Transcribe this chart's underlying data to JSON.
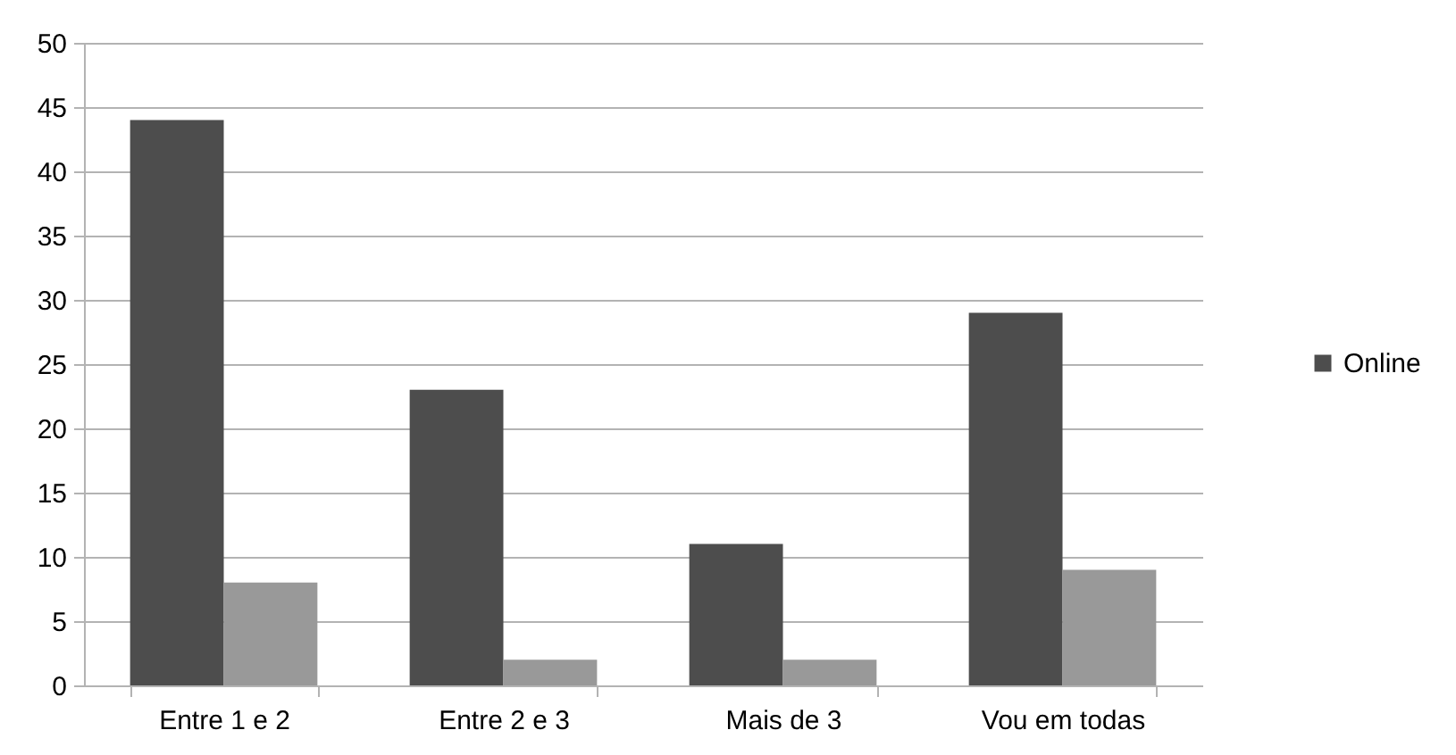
{
  "chart_data": {
    "type": "bar",
    "categories": [
      "Entre 1 e 2",
      "Entre 2 e 3",
      "Mais de 3",
      "Vou em todas"
    ],
    "series": [
      {
        "name": "Online",
        "color": "#4d4d4d",
        "values": [
          44,
          23,
          11,
          29
        ]
      },
      {
        "color": "#999999",
        "values": [
          8,
          2,
          2,
          9
        ]
      }
    ],
    "ylim": [
      0,
      50
    ],
    "yticks": [
      0,
      5,
      10,
      15,
      20,
      25,
      30,
      35,
      40,
      45,
      50
    ],
    "grid": "y",
    "legend": "right"
  }
}
